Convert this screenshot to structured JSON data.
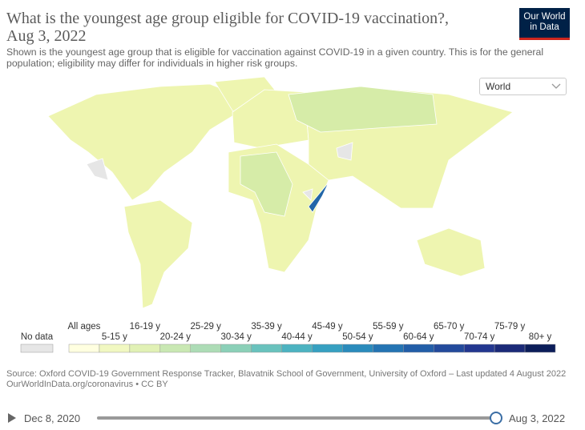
{
  "header": {
    "title": "What is the youngest age group eligible for COVID-19 vaccination?,",
    "date": "Aug 3, 2022",
    "logo": [
      "Our World",
      "in Data"
    ],
    "subtitle": "Shown is the youngest age group that is eligible for vaccination against COVID-19 in a given country. This is for the general population; eligibility may differ for individuals in higher risk groups."
  },
  "controls": {
    "region": "World"
  },
  "legend": {
    "no_data": {
      "label": "No data",
      "color": "#e6e6e6"
    },
    "items": [
      {
        "label": "All ages",
        "color": "#ffffe0"
      },
      {
        "label": "5-15 y",
        "color": "#f1f8c1"
      },
      {
        "label": "16-19 y",
        "color": "#e1f1b5"
      },
      {
        "label": "20-24 y",
        "color": "#c9e8b3"
      },
      {
        "label": "25-29 y",
        "color": "#addcb6"
      },
      {
        "label": "30-34 y",
        "color": "#8bd0b8"
      },
      {
        "label": "35-39 y",
        "color": "#69c2bd"
      },
      {
        "label": "40-44 y",
        "color": "#4cb3c1"
      },
      {
        "label": "45-49 y",
        "color": "#36a0c1"
      },
      {
        "label": "50-54 y",
        "color": "#2a8bbc"
      },
      {
        "label": "55-59 y",
        "color": "#2474b3"
      },
      {
        "label": "60-64 y",
        "color": "#225ea8"
      },
      {
        "label": "65-70 y",
        "color": "#234a9c"
      },
      {
        "label": "70-74 y",
        "color": "#233790"
      },
      {
        "label": "75-79 y",
        "color": "#1b2a78"
      },
      {
        "label": "80+ y",
        "color": "#0c1e5a"
      }
    ]
  },
  "footer": {
    "source": "Source: Oxford COVID-19 Government Response Tracker, Blavatnik School of Government, University of Oxford – Last updated 4 August 2022",
    "url": "OurWorldInData.org/coronavirus • CC BY"
  },
  "timeline": {
    "start": "Dec 8, 2020",
    "end": "Aug 3, 2022"
  }
}
